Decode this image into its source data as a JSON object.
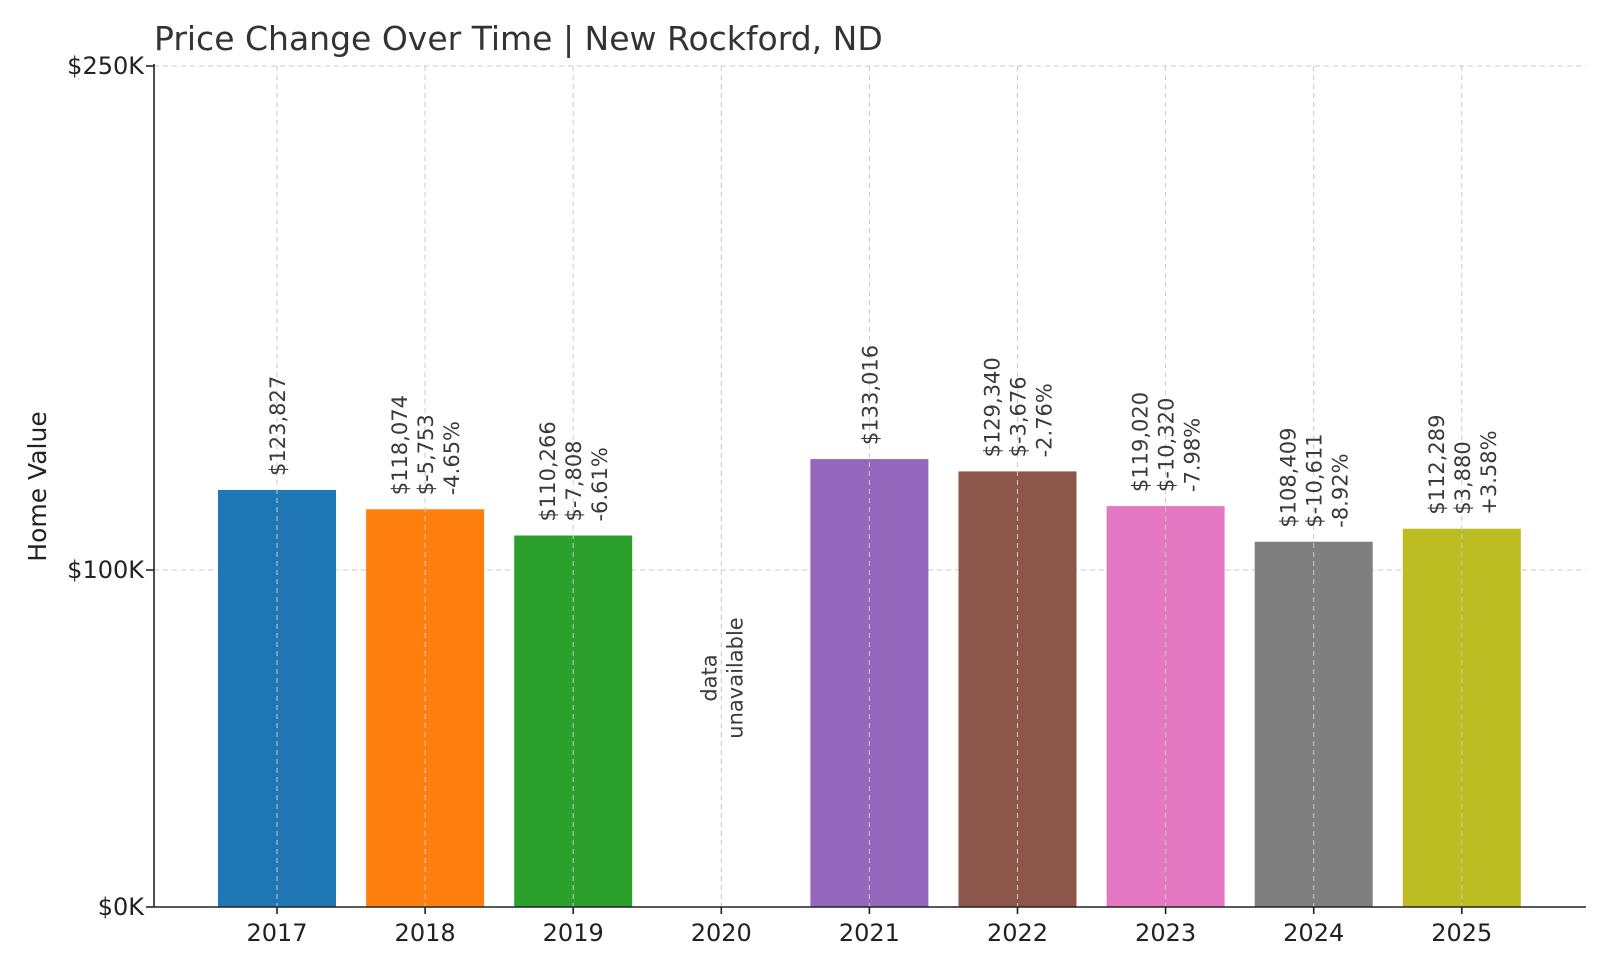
{
  "chart_data": {
    "type": "bar",
    "title": "Price Change Over Time | New Rockford, ND",
    "xlabel": "",
    "ylabel": "Home Value",
    "ylim": [
      0,
      250000
    ],
    "y_ticks": [
      {
        "value": 0,
        "label": "$0K"
      },
      {
        "value": 100000,
        "label": "$100K"
      },
      {
        "value": 250000,
        "label": "$250K"
      }
    ],
    "grid": true,
    "categories": [
      "2017",
      "2018",
      "2019",
      "2020",
      "2021",
      "2022",
      "2023",
      "2024",
      "2025"
    ],
    "values": [
      123827,
      118074,
      110266,
      null,
      133016,
      129340,
      119020,
      108409,
      112289
    ],
    "colors": [
      "#1f77b4",
      "#ff7f0e",
      "#2ca02c",
      "#d62728",
      "#9467bd",
      "#8c564b",
      "#e377c2",
      "#7f7f7f",
      "#bcbd22"
    ],
    "annotations": [
      [
        "$123,827"
      ],
      [
        "$118,074",
        "$-5,753",
        "-4.65%"
      ],
      [
        "$110,266",
        "$-7,808",
        "-6.61%"
      ],
      [
        "data",
        "unavailable"
      ],
      [
        "$133,016"
      ],
      [
        "$129,340",
        "$-3,676",
        "-2.76%"
      ],
      [
        "$119,020",
        "$-10,320",
        "-7.98%"
      ],
      [
        "$108,409",
        "$-10,611",
        "-8.92%"
      ],
      [
        "$112,289",
        "$3,880",
        "+3.58%"
      ]
    ]
  }
}
